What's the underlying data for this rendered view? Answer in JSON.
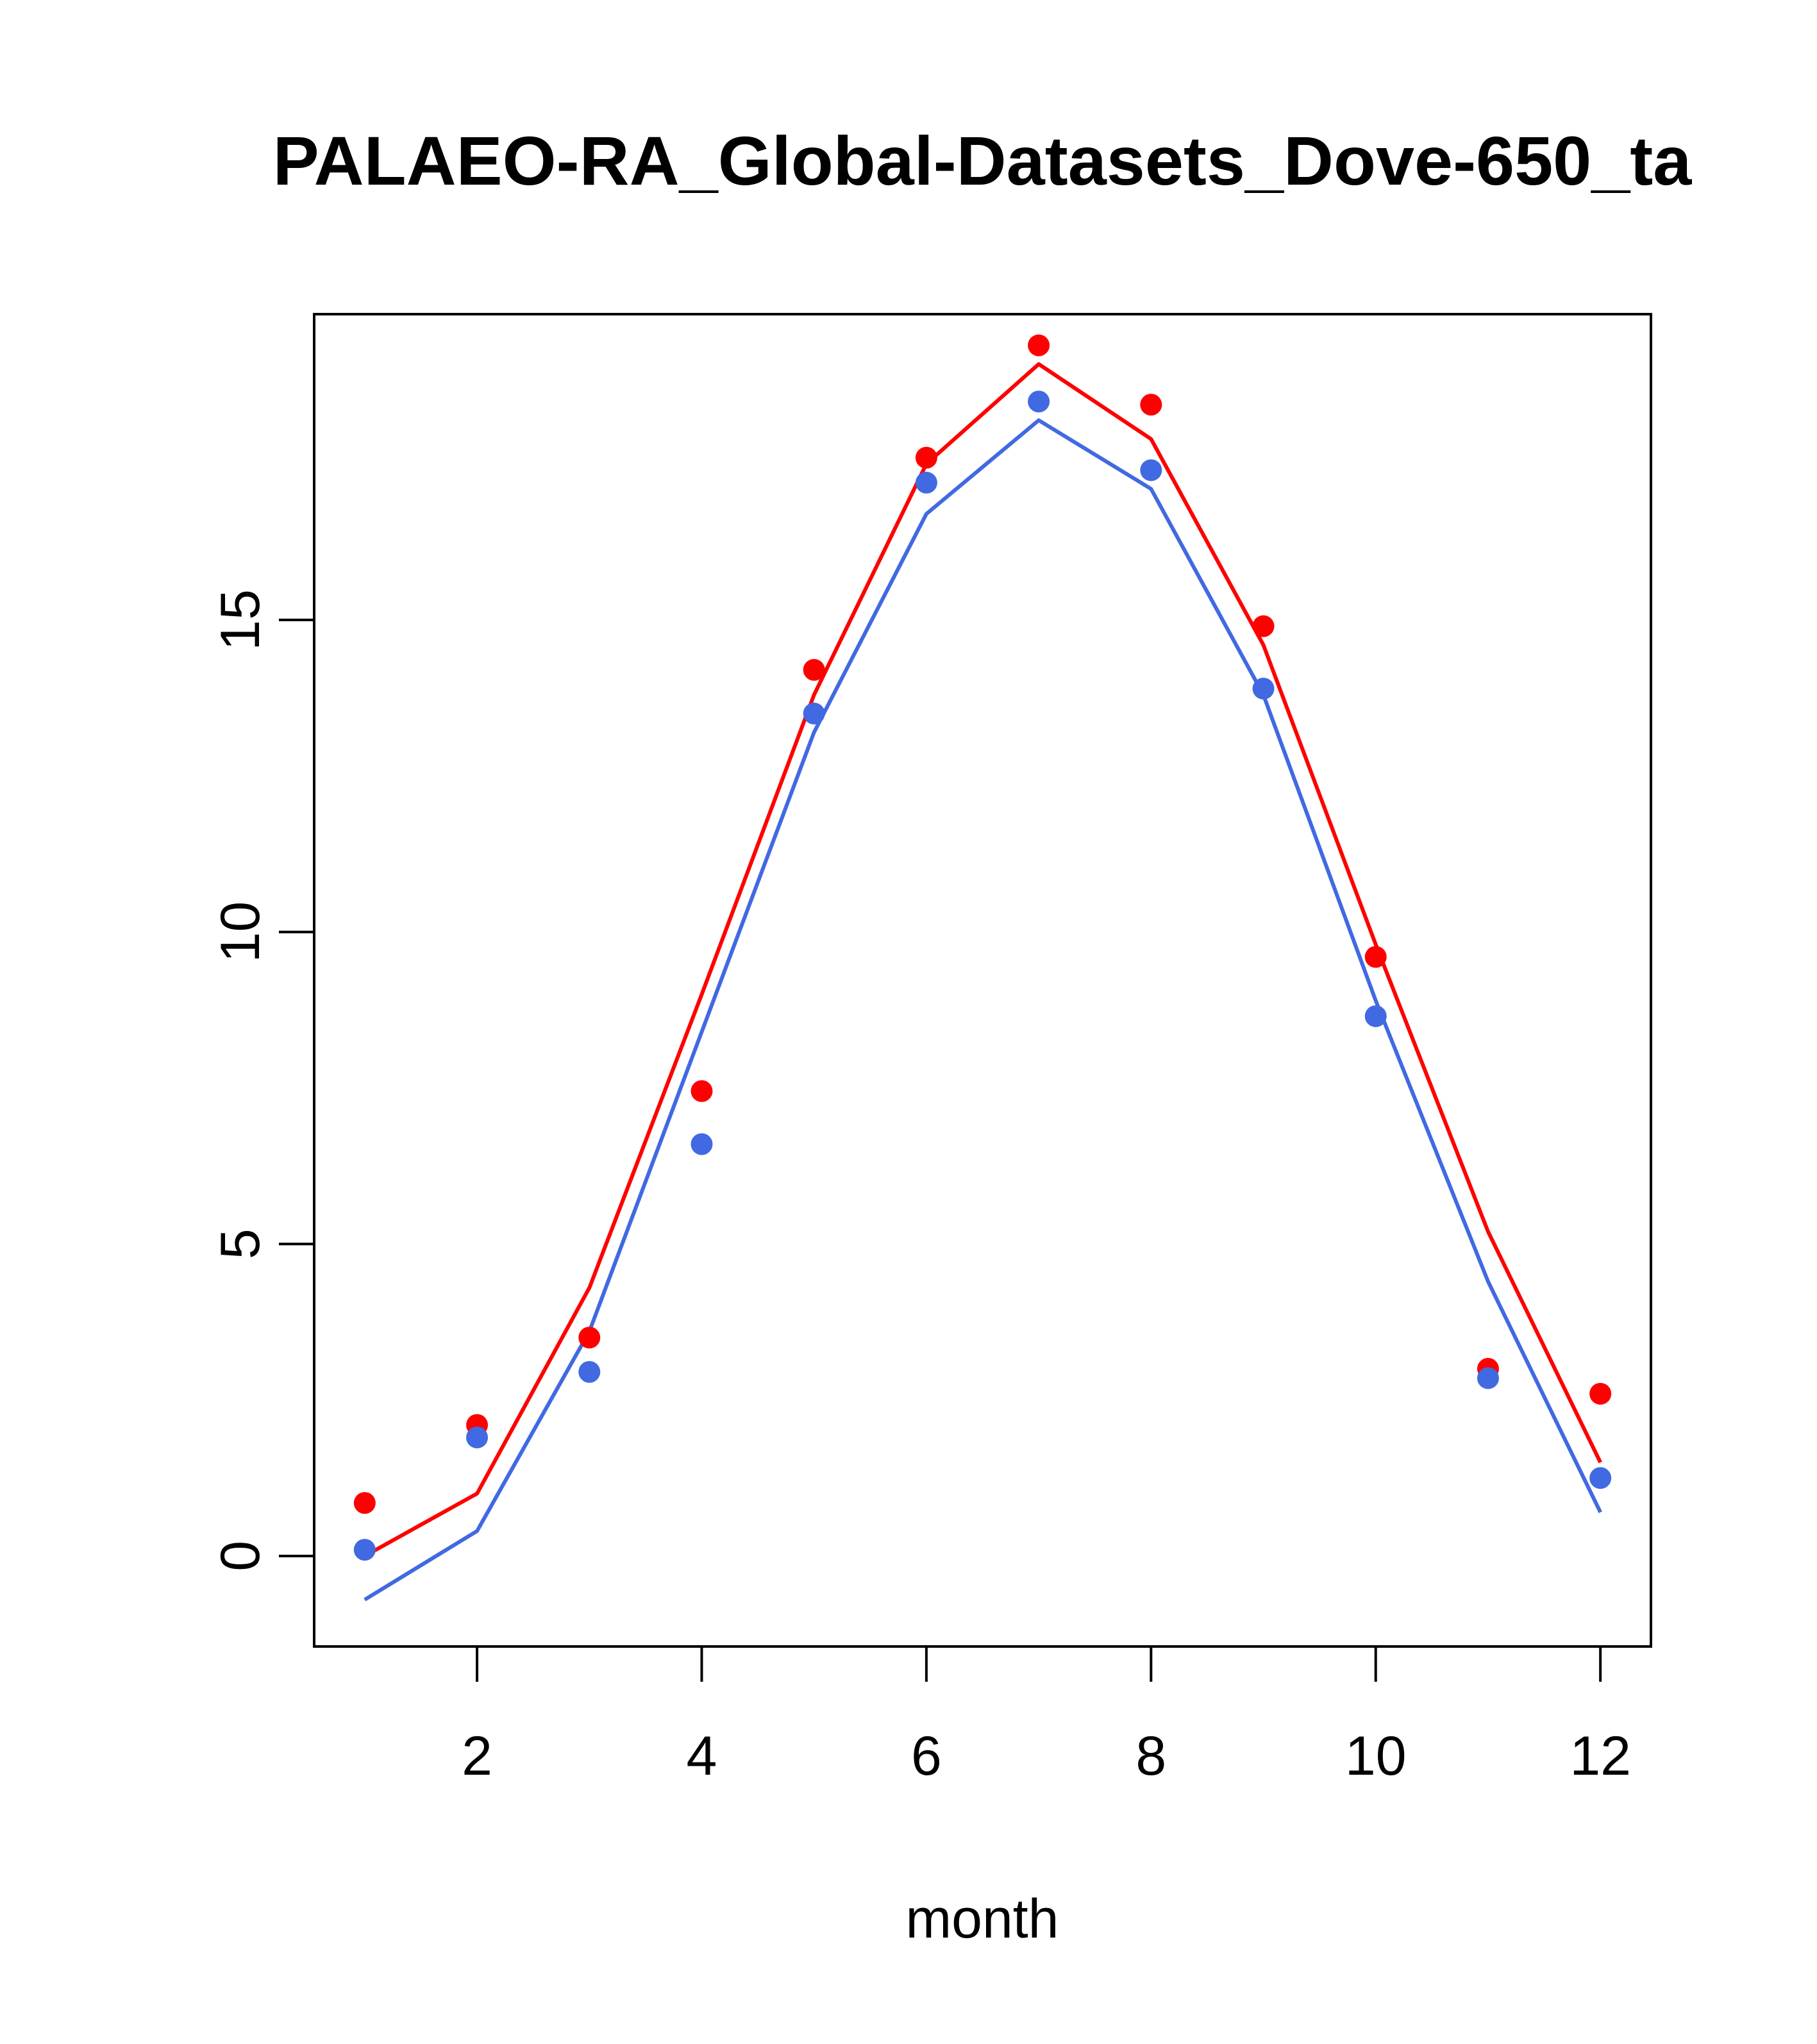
{
  "chart_data": {
    "type": "line",
    "title": "PALAEO-RA_Global-Datasets_Dove-650_ta",
    "xlabel": "month",
    "ylabel": "",
    "xlim": [
      0.55,
      12.45
    ],
    "ylim": [
      -1.45,
      19.9
    ],
    "x_ticks": [
      2,
      4,
      6,
      8,
      10,
      12
    ],
    "y_ticks": [
      0,
      5,
      10,
      15
    ],
    "grid": false,
    "legend": null,
    "x": [
      1,
      2,
      3,
      4,
      5,
      6,
      7,
      8,
      9,
      10,
      11,
      12
    ],
    "series": [
      {
        "name": "red-points",
        "kind": "points",
        "color": "#ff0000",
        "values": [
          0.85,
          2.1,
          3.5,
          7.45,
          14.2,
          17.6,
          19.4,
          18.45,
          14.9,
          9.6,
          3.0,
          2.6
        ]
      },
      {
        "name": "blue-points",
        "kind": "points",
        "color": "#4169e1",
        "values": [
          0.1,
          1.9,
          2.95,
          6.6,
          13.5,
          17.2,
          18.5,
          17.4,
          13.9,
          8.65,
          2.85,
          1.25
        ]
      },
      {
        "name": "red-line",
        "kind": "line",
        "color": "#ff0000",
        "values": [
          0.0,
          1.0,
          4.3,
          9.0,
          13.8,
          17.5,
          19.1,
          17.9,
          14.6,
          9.8,
          5.2,
          1.5
        ]
      },
      {
        "name": "blue-line",
        "kind": "line",
        "color": "#4169e1",
        "values": [
          -0.7,
          0.4,
          3.6,
          8.4,
          13.2,
          16.7,
          18.2,
          17.1,
          13.8,
          8.9,
          4.4,
          0.7
        ]
      }
    ]
  }
}
